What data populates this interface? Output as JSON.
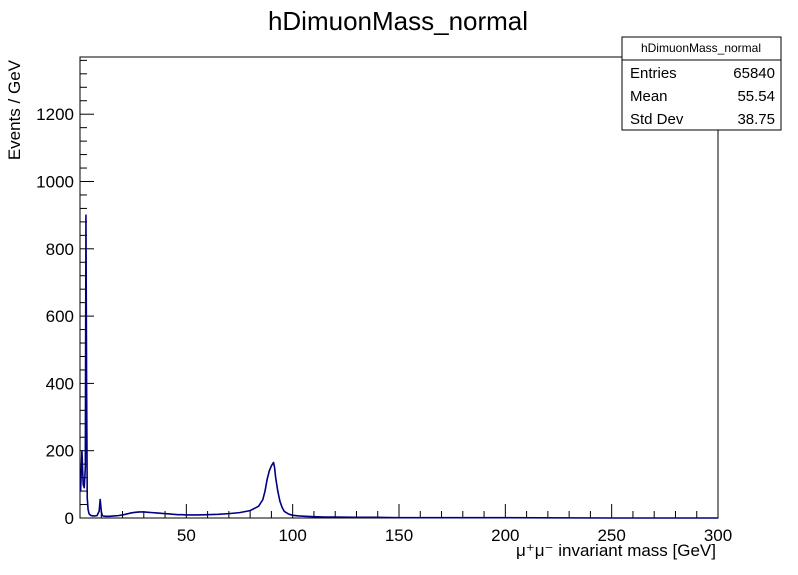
{
  "chart_data": {
    "type": "line",
    "title": "hDimuonMass_normal",
    "xlabel": "μ⁺μ⁻ invariant mass [GeV]",
    "ylabel": "Events / GeV",
    "xlim": [
      0,
      300
    ],
    "ylim": [
      0,
      1370
    ],
    "x_ticks": [
      50,
      100,
      150,
      200,
      250,
      300
    ],
    "y_ticks": [
      0,
      200,
      400,
      600,
      800,
      1000,
      1200
    ],
    "grid": false,
    "line_color": "#000080",
    "series": [
      {
        "values_x": [
          0.3,
          0.9,
          1.5,
          2.0,
          2.5,
          2.8,
          3.1,
          3.4,
          3.8,
          4.3,
          5.0,
          6,
          7,
          8,
          9,
          9.5,
          10.0,
          10.5,
          11,
          12,
          14,
          16,
          18,
          20,
          22,
          24,
          26,
          28,
          30,
          32,
          34,
          36,
          38,
          40,
          42,
          44,
          46,
          48,
          50,
          55,
          60,
          65,
          70,
          75,
          80,
          84,
          86,
          87,
          88,
          89,
          90,
          91,
          91.5,
          92,
          93,
          94,
          95,
          96,
          98,
          100,
          103,
          106,
          110,
          115,
          120,
          130,
          140,
          150,
          170,
          200,
          250,
          300
        ],
        "values_y": [
          80,
          200,
          100,
          90,
          150,
          900,
          400,
          60,
          25,
          12,
          8,
          6,
          6,
          7,
          20,
          55,
          20,
          7,
          6,
          5,
          5,
          6,
          7,
          9,
          12,
          15,
          17,
          18,
          18,
          17,
          16,
          15,
          14,
          13,
          12,
          11,
          10,
          10,
          9,
          9,
          10,
          11,
          13,
          16,
          22,
          35,
          55,
          80,
          115,
          140,
          155,
          165,
          150,
          120,
          80,
          50,
          32,
          20,
          12,
          8,
          6,
          5,
          4,
          3,
          3,
          2,
          2,
          1,
          1,
          1,
          0,
          0
        ]
      }
    ]
  },
  "stats_box": {
    "title": "hDimuonMass_normal",
    "rows": [
      {
        "label": "Entries",
        "value": "65840"
      },
      {
        "label": "Mean",
        "value": "55.54"
      },
      {
        "label": "Std Dev",
        "value": "38.75"
      }
    ]
  }
}
